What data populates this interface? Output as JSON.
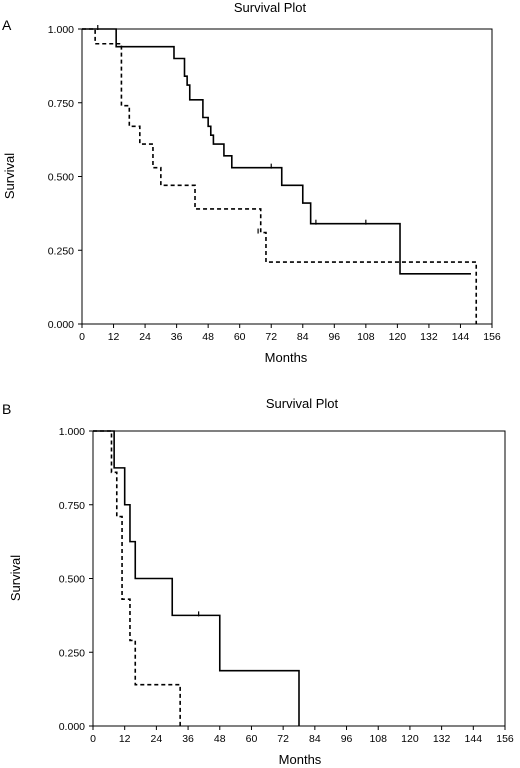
{
  "chart_data": [
    {
      "panel": "A",
      "type": "line",
      "title": "Survival Plot",
      "xlabel": "Months",
      "ylabel": "Survival",
      "xlim": [
        0,
        156
      ],
      "ylim": [
        0,
        1
      ],
      "xticks": [
        "0",
        "12",
        "24",
        "36",
        "48",
        "60",
        "72",
        "84",
        "96",
        "108",
        "120",
        "132",
        "144",
        "156"
      ],
      "yticks": [
        "0.000",
        "0.250",
        "0.500",
        "0.750",
        "1.000"
      ],
      "grid": false,
      "series": [
        {
          "style": "solid",
          "color": "#000000",
          "x": [
            0,
            13,
            35,
            39,
            40,
            41,
            42,
            46,
            48,
            49,
            50,
            54,
            57,
            76,
            84,
            87,
            121,
            148
          ],
          "y": [
            1.0,
            0.94,
            0.9,
            0.84,
            0.81,
            0.76,
            0.76,
            0.7,
            0.67,
            0.64,
            0.61,
            0.57,
            0.53,
            0.47,
            0.41,
            0.34,
            0.17,
            0.17
          ],
          "censored": [
            [
              6,
              1.0
            ],
            [
              72,
              0.53
            ],
            [
              89,
              0.34
            ],
            [
              108,
              0.34
            ]
          ]
        },
        {
          "style": "dashed",
          "color": "#000000",
          "x": [
            0,
            5,
            15,
            18,
            22,
            27,
            30,
            43,
            66,
            68,
            70,
            150
          ],
          "y": [
            1.0,
            0.95,
            0.74,
            0.67,
            0.61,
            0.53,
            0.47,
            0.39,
            0.39,
            0.31,
            0.21,
            0.0
          ],
          "censored": [
            [
              67,
              0.31
            ]
          ]
        }
      ]
    },
    {
      "panel": "B",
      "type": "line",
      "title": "Survival Plot",
      "xlabel": "Months",
      "ylabel": "Survival",
      "xlim": [
        0,
        156
      ],
      "ylim": [
        0,
        1
      ],
      "xticks": [
        "0",
        "12",
        "24",
        "36",
        "48",
        "60",
        "72",
        "84",
        "96",
        "108",
        "120",
        "132",
        "144",
        "156"
      ],
      "yticks": [
        "0.000",
        "0.250",
        "0.500",
        "0.750",
        "1.000"
      ],
      "grid": false,
      "series": [
        {
          "style": "solid",
          "color": "#000000",
          "x": [
            0,
            8,
            12,
            14,
            16,
            18,
            30,
            48,
            78
          ],
          "y": [
            1.0,
            0.875,
            0.75,
            0.625,
            0.5,
            0.5,
            0.375,
            0.1875,
            0.0
          ],
          "censored": [
            [
              40,
              0.375
            ]
          ]
        },
        {
          "style": "dashed",
          "color": "#000000",
          "x": [
            0,
            7,
            9,
            11,
            14,
            16,
            33
          ],
          "y": [
            1.0,
            0.86,
            0.71,
            0.43,
            0.29,
            0.14,
            0.0
          ],
          "censored": []
        }
      ]
    }
  ]
}
